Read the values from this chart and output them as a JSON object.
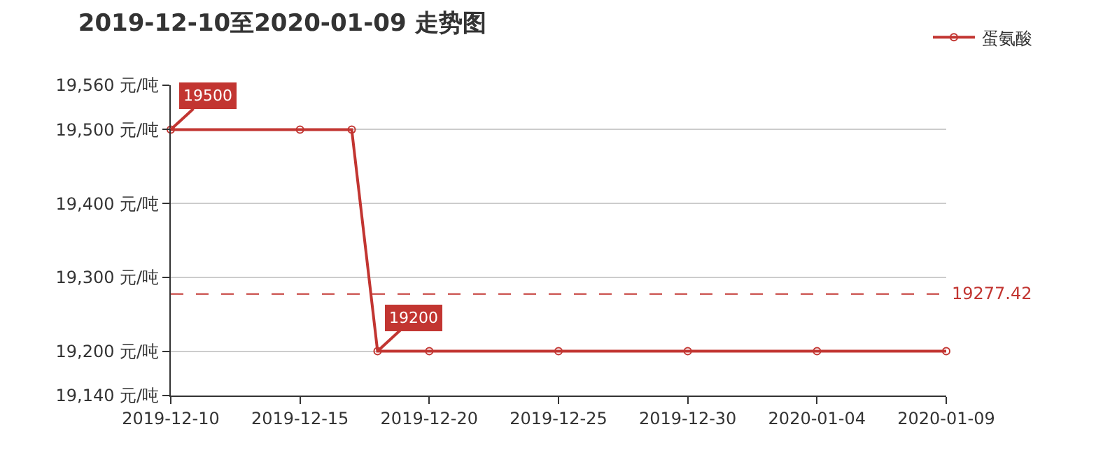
{
  "chart_data": {
    "type": "line",
    "title": "2019-12-10至2020-01-09 走势图",
    "x": [
      "2019-12-10",
      "2019-12-15",
      "2019-12-17",
      "2019-12-18",
      "2019-12-20",
      "2019-12-25",
      "2019-12-30",
      "2020-01-04",
      "2020-01-09"
    ],
    "series": [
      {
        "name": "蛋氨酸",
        "color": "#c23531",
        "values": [
          19500,
          19500,
          19500,
          19200,
          19200,
          19200,
          19200,
          19200,
          19200
        ]
      }
    ],
    "xlim": [
      "2019-12-10",
      "2020-01-09"
    ],
    "xticks": [
      "2019-12-10",
      "2019-12-15",
      "2019-12-20",
      "2019-12-25",
      "2019-12-30",
      "2020-01-04",
      "2020-01-09"
    ],
    "ylim": [
      19140,
      19560
    ],
    "yticks": [
      {
        "value": 19140,
        "label": "19,140 元/吨"
      },
      {
        "value": 19200,
        "label": "19,200 元/吨"
      },
      {
        "value": 19300,
        "label": "19,300 元/吨"
      },
      {
        "value": 19400,
        "label": "19,400 元/吨"
      },
      {
        "value": 19500,
        "label": "19,500 元/吨"
      },
      {
        "value": 19560,
        "label": "19,560 元/吨"
      }
    ],
    "annotations": [
      {
        "text": "19500",
        "x": "2019-12-10",
        "y": 19500
      },
      {
        "text": "19200",
        "x": "2019-12-18",
        "y": 19200
      }
    ],
    "ref_lines": [
      {
        "axis": "y",
        "value": 19277.42,
        "label": "19277.42",
        "color": "#c23531",
        "line_style": "dashed"
      }
    ],
    "grid": "y",
    "legend": "top right",
    "marker": "circle",
    "line_style": "solid"
  }
}
